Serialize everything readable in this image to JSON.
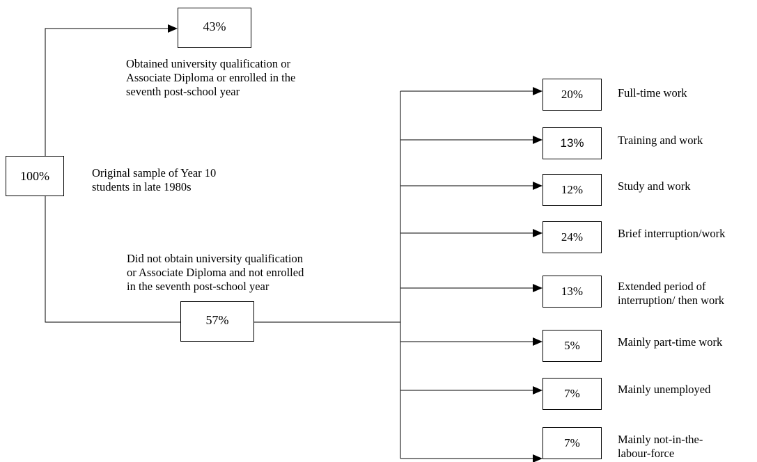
{
  "root": {
    "value": "100%",
    "label": "Original sample of Year 10\nstudents in late 1980s"
  },
  "completed": {
    "value": "43%",
    "label": "Obtained university qualification or\nAssociate Diploma or enrolled in the\nseventh post-school year"
  },
  "not_completed": {
    "value": "57%",
    "label": "Did not obtain university qualification\nor Associate Diploma and not enrolled\nin the seventh post-school year"
  },
  "outcomes": [
    {
      "value": "20%",
      "label": "Full-time work"
    },
    {
      "value": "13%",
      "label": "Training and work"
    },
    {
      "value": "12%",
      "label": "Study and work"
    },
    {
      "value": "24%",
      "label": "Brief interruption/work"
    },
    {
      "value": "13%",
      "label": "Extended period of\ninterruption/ then work"
    },
    {
      "value": "5%",
      "label": "Mainly part-time work"
    },
    {
      "value": "7%",
      "label": "Mainly unemployed"
    },
    {
      "value": "7%",
      "label": "Mainly not-in-the-\nlabour-force"
    }
  ]
}
